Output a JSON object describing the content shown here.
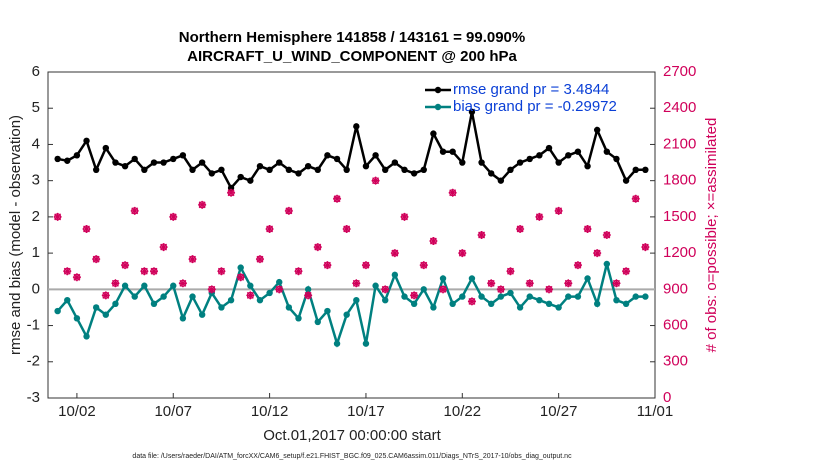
{
  "chart_data": {
    "type": "line",
    "title": "Northern Hemisphere 141858 / 143161 = 99.090%",
    "subtitle": "AIRCRAFT_U_WIND_COMPONENT @ 200 hPa",
    "x_label": "Oct.01,2017 00:00:00 start",
    "y_label": "rmse and bias (model - observation)",
    "y2_label": "# of obs: o=possible; ×=assimilated",
    "footnote": "data file: /Users/raeder/DAI/ATM_forcXX/CAM6_setup/f.e21.FHIST_BGC.f09_025.CAM6assim.011/Diags_NTrS_2017-10/obs_diag_output.nc",
    "x": [
      0,
      0.5,
      1,
      1.5,
      2,
      2.5,
      3,
      3.5,
      4,
      4.5,
      5,
      5.5,
      6,
      6.5,
      7,
      7.5,
      8,
      8.5,
      9,
      9.5,
      10,
      10.5,
      11,
      11.5,
      12,
      12.5,
      13,
      13.5,
      14,
      14.5,
      15,
      15.5,
      16,
      16.5,
      17,
      17.5,
      18,
      18.5,
      19,
      19.5,
      20,
      20.5,
      21,
      21.5,
      22,
      22.5,
      23,
      23.5,
      24,
      24.5,
      25,
      25.5,
      26,
      26.5,
      27,
      27.5,
      28,
      28.5,
      29,
      29.5,
      30,
      30.5
    ],
    "xlim": [
      -0.5,
      31
    ],
    "xticks": [
      {
        "value": 1,
        "label": "10/02"
      },
      {
        "value": 6,
        "label": "10/07"
      },
      {
        "value": 11,
        "label": "10/12"
      },
      {
        "value": 16,
        "label": "10/17"
      },
      {
        "value": 21,
        "label": "10/22"
      },
      {
        "value": 26,
        "label": "10/27"
      },
      {
        "value": 31,
        "label": "11/01"
      }
    ],
    "ylim": [
      -3,
      6
    ],
    "yticks": [
      -3,
      -2,
      -1,
      0,
      1,
      2,
      3,
      4,
      5,
      6
    ],
    "y2lim": [
      0,
      2700
    ],
    "y2ticks": [
      0,
      300,
      600,
      900,
      1200,
      1500,
      1800,
      2100,
      2400,
      2700
    ],
    "legend": "upper right",
    "series": [
      {
        "name": "rmse grand pr = 3.4844",
        "color": "#000000",
        "values": [
          3.6,
          3.55,
          3.7,
          4.1,
          3.3,
          3.9,
          3.5,
          3.4,
          3.6,
          3.3,
          3.5,
          3.5,
          3.6,
          3.7,
          3.3,
          3.5,
          3.2,
          3.3,
          2.8,
          3.1,
          3.0,
          3.4,
          3.3,
          3.5,
          3.3,
          3.2,
          3.4,
          3.3,
          3.7,
          3.6,
          3.3,
          4.5,
          3.4,
          3.7,
          3.3,
          3.5,
          3.3,
          3.2,
          3.3,
          4.3,
          3.8,
          3.8,
          3.5,
          4.9,
          3.5,
          3.2,
          3.0,
          3.3,
          3.5,
          3.6,
          3.7,
          3.9,
          3.5,
          3.7,
          3.8,
          3.4,
          4.4,
          3.8,
          3.6,
          3.0,
          3.3,
          3.3
        ]
      },
      {
        "name": "bias grand pr = -0.29972",
        "color": "#008080",
        "values": [
          -0.6,
          -0.3,
          -0.8,
          -1.3,
          -0.5,
          -0.7,
          -0.4,
          0.1,
          -0.2,
          0.1,
          -0.4,
          -0.2,
          0.1,
          -0.8,
          -0.2,
          -0.7,
          -0.1,
          -0.5,
          -0.3,
          0.6,
          0.1,
          -0.3,
          -0.1,
          0.2,
          -0.5,
          -0.8,
          0.0,
          -0.9,
          -0.6,
          -1.5,
          -0.7,
          -0.3,
          -1.5,
          0.1,
          -0.3,
          0.4,
          -0.2,
          -0.4,
          0.0,
          -0.5,
          0.3,
          -0.4,
          -0.2,
          0.3,
          -0.2,
          -0.4,
          -0.2,
          -0.1,
          -0.5,
          -0.2,
          -0.3,
          -0.4,
          -0.5,
          -0.2,
          -0.2,
          0.3,
          -0.4,
          0.7,
          -0.3,
          -0.4,
          -0.2,
          -0.2
        ]
      },
      {
        "color": "#d0005a",
        "axis": "y2",
        "marker": "o",
        "values": [
          1500,
          1050,
          1000,
          1400,
          1150,
          850,
          950,
          1100,
          1550,
          1050,
          1050,
          1250,
          1500,
          950,
          1150,
          1600,
          900,
          1050,
          1700,
          1000,
          850,
          1150,
          1400,
          900,
          1550,
          1050,
          850,
          1250,
          1100,
          1650,
          1400,
          950,
          1100,
          1800,
          900,
          1200,
          1500,
          850,
          1100,
          1300,
          900,
          1700,
          1200,
          800,
          1350,
          950,
          900,
          1050,
          1400,
          950,
          1500,
          900,
          1550,
          950,
          1100,
          1400,
          1200,
          1350,
          950,
          1050,
          1650,
          1250
        ]
      }
    ]
  }
}
